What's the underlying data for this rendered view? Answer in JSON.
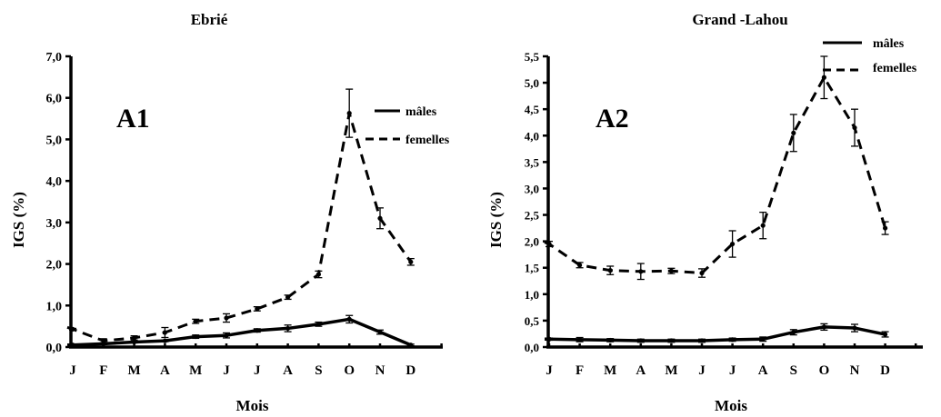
{
  "chart_data": [
    {
      "type": "line",
      "title": "Ebrié",
      "panel_label": "A1",
      "xlabel": "Mois",
      "ylabel": "IGS (%)",
      "categories": [
        "J",
        "F",
        "M",
        "A",
        "M",
        "J",
        "J",
        "A",
        "S",
        "O",
        "N",
        "D"
      ],
      "ylim": [
        0,
        7
      ],
      "yticks": [
        "0,0",
        "1,0",
        "2,0",
        "3,0",
        "4,0",
        "5,0",
        "6,0",
        "7,0"
      ],
      "legend_position": "top-right",
      "grid": false,
      "series": [
        {
          "name": "mâles",
          "style": "solid",
          "values": [
            0.05,
            0.08,
            0.12,
            0.15,
            0.25,
            0.28,
            0.4,
            0.45,
            0.55,
            0.67,
            0.36,
            0.05
          ],
          "errors": [
            0.02,
            0.02,
            0.02,
            0.02,
            0.04,
            0.06,
            0.04,
            0.08,
            0.05,
            0.09,
            0.05,
            0.02
          ]
        },
        {
          "name": "femelles",
          "style": "dashed",
          "values": [
            0.43,
            0.15,
            0.22,
            0.35,
            0.62,
            0.7,
            0.92,
            1.2,
            1.75,
            5.63,
            3.1,
            2.05
          ],
          "errors": [
            0.02,
            0.05,
            0.05,
            0.12,
            0.05,
            0.1,
            0.05,
            0.05,
            0.08,
            0.58,
            0.25,
            0.08
          ]
        }
      ]
    },
    {
      "type": "line",
      "title": "Grand -Lahou",
      "panel_label": "A2",
      "xlabel": "Mois",
      "ylabel": "IGS (%)",
      "categories": [
        "J",
        "F",
        "M",
        "A",
        "M",
        "J",
        "J",
        "A",
        "S",
        "O",
        "N",
        "D"
      ],
      "ylim": [
        0,
        5.5
      ],
      "yticks": [
        "0,0",
        "0,5",
        "1,0",
        "1,5",
        "2,0",
        "2,5",
        "3,0",
        "3,5",
        "4,0",
        "4,5",
        "5,0",
        "5,5"
      ],
      "legend_position": "top-right",
      "grid": false,
      "series": [
        {
          "name": "mâles",
          "style": "solid",
          "values": [
            0.15,
            0.14,
            0.13,
            0.12,
            0.12,
            0.12,
            0.14,
            0.15,
            0.28,
            0.38,
            0.36,
            0.24
          ],
          "errors": [
            0.02,
            0.04,
            0.03,
            0.03,
            0.03,
            0.03,
            0.03,
            0.04,
            0.05,
            0.06,
            0.07,
            0.05
          ]
        },
        {
          "name": "femelles",
          "style": "dashed",
          "values": [
            1.95,
            1.55,
            1.45,
            1.43,
            1.44,
            1.4,
            1.95,
            2.3,
            4.05,
            5.1,
            4.15,
            2.25
          ],
          "errors": [
            0.05,
            0.05,
            0.08,
            0.15,
            0.05,
            0.08,
            0.25,
            0.25,
            0.35,
            0.4,
            0.35,
            0.12
          ]
        }
      ]
    }
  ]
}
